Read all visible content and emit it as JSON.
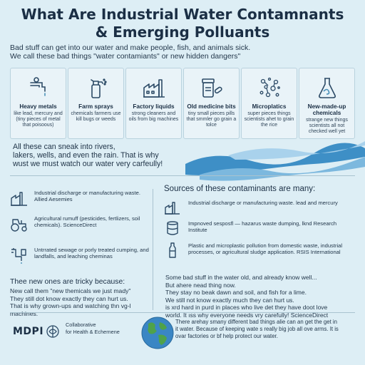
{
  "title": {
    "line1": "What Are Industrial Water Contamnants",
    "line2": "& Emerging Polluants"
  },
  "intro": {
    "line1": "Bad stuff can get into our water and make people, fish, and animals sick.",
    "line2": "We call these bad things \"water contamiants\" or new hidden dangers\""
  },
  "cards": [
    {
      "title": "Heavy metals",
      "desc": "like lead, mercury and (tiny pieces of metal that poisoous)",
      "icon": "faucet-icon"
    },
    {
      "title": "Farm sprays",
      "desc": "chemicals farmers use kill bugs or weeds",
      "icon": "spray-bottle-icon"
    },
    {
      "title": "Factory liquids",
      "desc": "strong cleaners and oils from big machines",
      "icon": "factory-icon"
    },
    {
      "title": "Old medicine bits",
      "desc": "tiny small pieces pills that smmler go grain a tolce",
      "icon": "pill-bottle-icon"
    },
    {
      "title": "Microplatics",
      "desc": "super pieces things scientists ahet to grain the rice",
      "icon": "particles-icon"
    },
    {
      "title": "New-made-up chemicals",
      "desc": "strange new things scientists all not checked well yet",
      "icon": "flask-icon"
    }
  ],
  "sneak": {
    "line1": "All these can sneak into rivers,",
    "line2": "lakers, wells, and even the rain. That is why",
    "line3": "wust we must watch our water very carfeully!"
  },
  "left_items": [
    {
      "text": "Industrial discharge or manufacturing waste. Allied Aesemies",
      "icon": "factory-icon"
    },
    {
      "text": "Agricultural rumuff (pesticides, fertlizers, soil chemicals). ScienceDirect",
      "icon": "tractor-icon"
    },
    {
      "text": "Untrrated sewage or porly treated cumping, and landfalls, and leaching cheminas",
      "icon": "pipe-icon"
    }
  ],
  "sources": {
    "heading": "Sources of these contaminants are many:",
    "items": [
      {
        "text": "Industrial discharge or manufacturing waste. lead and mercury",
        "icon": "factory-icon"
      },
      {
        "text": "Impnoved sesposfl — hazarus waste dumping, lknd Research Institute",
        "icon": "barrel-icon"
      },
      {
        "text": "Plastic and microplastic pollution from domestic waste, industrial processes, or agricultural sludge application. RSIS International",
        "icon": "bottle-icon"
      }
    ]
  },
  "tricky": {
    "heading": "Thee new ones are tricky because:",
    "lines": [
      "New call them \"new themicals we just mady\"",
      "They still dot know exactly they can hurt us.",
      "That is why grown-ups and watching thn vg-l",
      "machines."
    ]
  },
  "emerging": {
    "lines": [
      "Some bad stuff in the water  old, and already know well...",
      "But ahere nead thing now.",
      "They stay no beak dawn and soil, and fish for a lime.",
      "We still not know exactly much they can hurt us.",
      "is xrd hard in purd in places who live det they have doot love",
      "world. It ıss why everyone needs vry carefully! ScienceDirect"
    ]
  },
  "footer": {
    "publisher": "MDPI",
    "collab_line1": "Collaborative",
    "collab_line2": "for Health & Echernene",
    "note_line1": "There arehay smany different bad things alie can an get the get in",
    "note_line2": "it water. Because of keeping wate s really big job all ove arms. It is",
    "note_line3": "ovar factories or bf help protect our water."
  }
}
